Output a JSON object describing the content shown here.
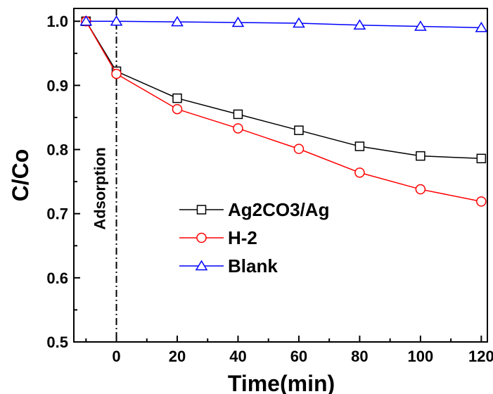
{
  "chart_data": {
    "type": "line",
    "xlabel": "Time(min)",
    "ylabel": "C/Co",
    "x": [
      -10,
      0,
      20,
      40,
      60,
      80,
      100,
      120
    ],
    "xlim": [
      -14,
      122
    ],
    "ylim": [
      0.5,
      1.02
    ],
    "xticks": [
      0,
      20,
      40,
      60,
      80,
      100,
      120
    ],
    "yticks": [
      0.5,
      0.6,
      0.7,
      0.8,
      0.9,
      1.0
    ],
    "xtick_labels": [
      "0",
      "20",
      "40",
      "60",
      "80",
      "100",
      "120"
    ],
    "ytick_labels": [
      "0.5",
      "0.6",
      "0.7",
      "0.8",
      "0.9",
      "1.0"
    ],
    "grid": false,
    "legend_position": "center-left",
    "annotation": {
      "text": "Adsorption",
      "x": 0
    },
    "series": [
      {
        "name": "Ag2CO3/Ag",
        "marker": "square",
        "color": "#000000",
        "values": [
          1.0,
          0.922,
          0.88,
          0.855,
          0.83,
          0.805,
          0.79,
          0.786
        ]
      },
      {
        "name": "H-2",
        "marker": "circle",
        "color": "#ff0000",
        "values": [
          1.0,
          0.918,
          0.863,
          0.833,
          0.801,
          0.764,
          0.738,
          0.719
        ]
      },
      {
        "name": "Blank",
        "marker": "triangle",
        "color": "#0000ff",
        "values": [
          1.0,
          1.0,
          0.999,
          0.998,
          0.997,
          0.994,
          0.992,
          0.99
        ]
      }
    ]
  }
}
